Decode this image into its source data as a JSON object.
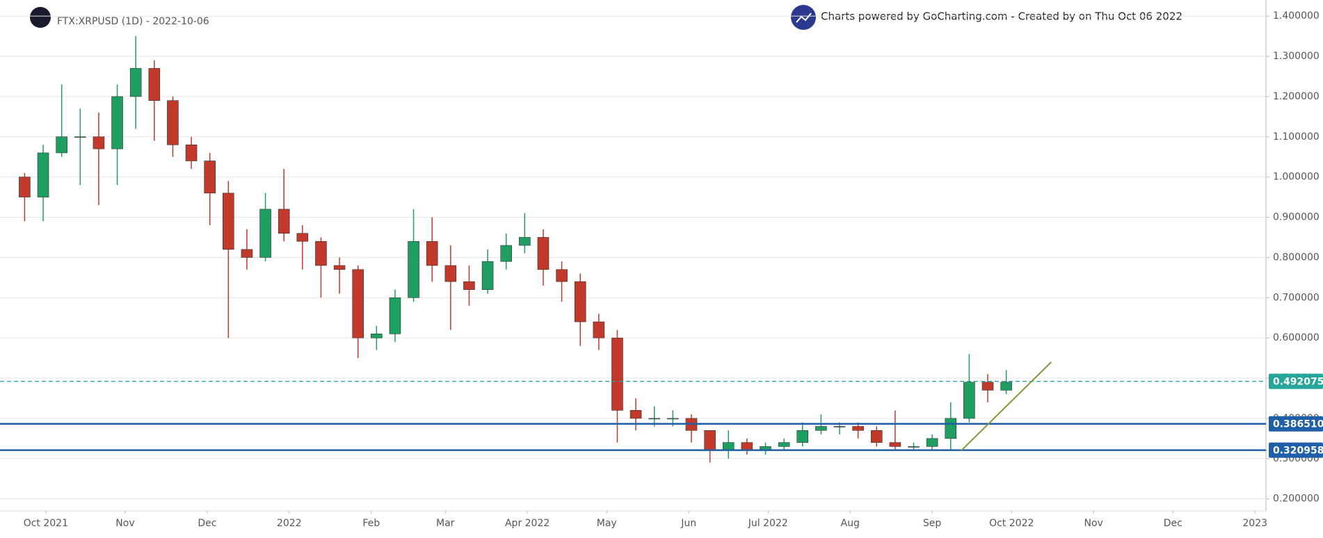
{
  "chart_data": {
    "type": "candlestick",
    "title": "FTX:XRPUSD (1D) - 2022-10-06",
    "subtitle": "Charts powered by GoCharting.com - Created by  on Thu Oct 06 2022",
    "x": [
      0,
      7,
      14,
      21,
      28,
      35,
      42,
      49,
      56,
      63,
      70,
      77,
      84,
      91,
      98,
      105,
      112,
      119,
      126,
      133,
      140,
      147,
      154,
      161,
      168,
      175,
      182,
      189,
      196,
      203,
      210,
      217,
      224,
      231,
      238,
      245,
      252,
      259,
      266,
      273,
      280,
      287,
      294,
      301,
      308,
      315,
      322,
      329,
      336,
      343,
      350,
      357,
      364,
      371
    ],
    "open": [
      1.0,
      0.95,
      1.06,
      1.1,
      1.1,
      1.07,
      1.2,
      1.27,
      1.19,
      1.08,
      1.04,
      0.96,
      0.82,
      0.8,
      0.92,
      0.86,
      0.84,
      0.78,
      0.77,
      0.6,
      0.61,
      0.7,
      0.84,
      0.78,
      0.74,
      0.72,
      0.79,
      0.83,
      0.85,
      0.77,
      0.74,
      0.64,
      0.6,
      0.42,
      0.4,
      0.4,
      0.4,
      0.37,
      0.32,
      0.34,
      0.32,
      0.33,
      0.34,
      0.37,
      0.38,
      0.38,
      0.37,
      0.34,
      0.33,
      0.33,
      0.35,
      0.4,
      0.49,
      0.47
    ],
    "high": [
      1.01,
      1.08,
      1.23,
      1.17,
      1.16,
      1.23,
      1.35,
      1.29,
      1.2,
      1.1,
      1.06,
      0.99,
      0.87,
      0.96,
      1.02,
      0.88,
      0.85,
      0.8,
      0.78,
      0.63,
      0.72,
      0.92,
      0.9,
      0.83,
      0.78,
      0.82,
      0.86,
      0.91,
      0.87,
      0.79,
      0.76,
      0.66,
      0.62,
      0.45,
      0.43,
      0.42,
      0.41,
      0.37,
      0.37,
      0.35,
      0.34,
      0.35,
      0.39,
      0.41,
      0.39,
      0.39,
      0.38,
      0.42,
      0.34,
      0.36,
      0.44,
      0.56,
      0.51,
      0.52
    ],
    "low": [
      0.89,
      0.89,
      1.05,
      0.98,
      0.93,
      0.98,
      1.12,
      1.09,
      1.05,
      1.02,
      0.88,
      0.6,
      0.77,
      0.79,
      0.84,
      0.77,
      0.7,
      0.71,
      0.55,
      0.57,
      0.59,
      0.69,
      0.74,
      0.62,
      0.68,
      0.71,
      0.77,
      0.81,
      0.73,
      0.69,
      0.58,
      0.57,
      0.34,
      0.37,
      0.38,
      0.38,
      0.34,
      0.29,
      0.3,
      0.31,
      0.31,
      0.32,
      0.33,
      0.36,
      0.36,
      0.35,
      0.33,
      0.32,
      0.32,
      0.32,
      0.32,
      0.39,
      0.44,
      0.46
    ],
    "close": [
      0.95,
      1.06,
      1.1,
      1.1,
      1.07,
      1.2,
      1.27,
      1.19,
      1.08,
      1.04,
      0.96,
      0.82,
      0.8,
      0.92,
      0.86,
      0.84,
      0.78,
      0.77,
      0.6,
      0.61,
      0.7,
      0.84,
      0.78,
      0.74,
      0.72,
      0.79,
      0.83,
      0.85,
      0.77,
      0.74,
      0.64,
      0.6,
      0.42,
      0.4,
      0.4,
      0.4,
      0.37,
      0.32,
      0.34,
      0.32,
      0.33,
      0.34,
      0.37,
      0.38,
      0.38,
      0.37,
      0.34,
      0.33,
      0.33,
      0.35,
      0.4,
      0.49,
      0.47,
      0.49
    ],
    "up_color": "#1f9e61",
    "down_color": "#c0392b",
    "xlim": [
      -3,
      466
    ],
    "xticks": [
      {
        "value": 8,
        "label": "Oct 2021"
      },
      {
        "value": 38,
        "label": "Nov"
      },
      {
        "value": 69,
        "label": "Dec"
      },
      {
        "value": 100,
        "label": "2022"
      },
      {
        "value": 131,
        "label": "Feb"
      },
      {
        "value": 159,
        "label": "Mar"
      },
      {
        "value": 190,
        "label": "Apr 2022"
      },
      {
        "value": 220,
        "label": "May"
      },
      {
        "value": 251,
        "label": "Jun"
      },
      {
        "value": 281,
        "label": "Jul 2022"
      },
      {
        "value": 312,
        "label": "Aug"
      },
      {
        "value": 343,
        "label": "Sep"
      },
      {
        "value": 373,
        "label": "Oct 2022"
      },
      {
        "value": 404,
        "label": "Nov"
      },
      {
        "value": 434,
        "label": "Dec"
      },
      {
        "value": 465,
        "label": "2023"
      }
    ],
    "ylim": [
      0.17,
      1.44
    ],
    "yticks": [
      {
        "value": 0.2,
        "label": "0.200000"
      },
      {
        "value": 0.3,
        "label": "0.300000"
      },
      {
        "value": 0.4,
        "label": "0.400000"
      },
      {
        "value": 0.5,
        "label": "0.500000"
      },
      {
        "value": 0.6,
        "label": "0.600000"
      },
      {
        "value": 0.7,
        "label": "0.700000"
      },
      {
        "value": 0.8,
        "label": "0.800000"
      },
      {
        "value": 0.9,
        "label": "0.900000"
      },
      {
        "value": 1.0,
        "label": "1.000000"
      },
      {
        "value": 1.1,
        "label": "1.100000"
      },
      {
        "value": 1.2,
        "label": "1.200000"
      },
      {
        "value": 1.3,
        "label": "1.300000"
      },
      {
        "value": 1.4,
        "label": "1.400000"
      }
    ],
    "grid": true,
    "levels": [
      {
        "value": 0.492075,
        "label": "0.492075",
        "color": "#26a69a",
        "style": "dashed"
      },
      {
        "value": 0.38651,
        "label": "0.386510",
        "color": "#1f5fa8",
        "style": "solid"
      },
      {
        "value": 0.320958,
        "label": "0.320958",
        "color": "#1f5fa8",
        "style": "solid"
      }
    ],
    "trendline": {
      "x": [
        354,
        388
      ],
      "y": [
        0.32,
        0.54
      ],
      "color": "#7d9a3a"
    }
  }
}
